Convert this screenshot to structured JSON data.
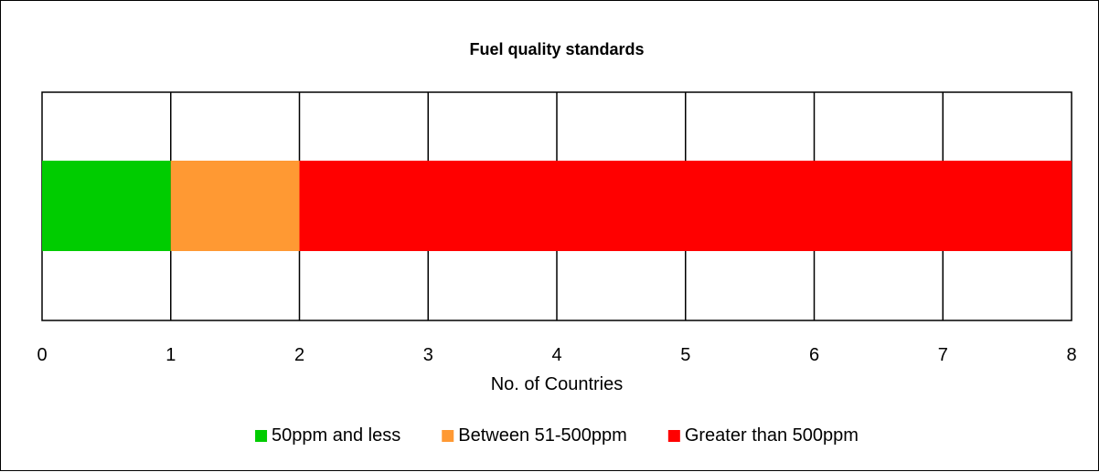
{
  "chart_data": {
    "type": "bar",
    "orientation": "horizontal",
    "stacked": true,
    "title": "Fuel quality standards",
    "xlabel": "No. of Countries",
    "ylabel": "",
    "xlim": [
      0,
      8
    ],
    "x_ticks": [
      "0",
      "1",
      "2",
      "3",
      "4",
      "5",
      "6",
      "7",
      "8"
    ],
    "grid": true,
    "legend_position": "bottom",
    "series": [
      {
        "name": "50ppm and less",
        "values": [
          1
        ],
        "color": "#00CC00"
      },
      {
        "name": "Between 51-500ppm",
        "values": [
          1
        ],
        "color": "#FF9933"
      },
      {
        "name": "Greater than 500ppm",
        "values": [
          6
        ],
        "color": "#FF0000"
      }
    ]
  }
}
